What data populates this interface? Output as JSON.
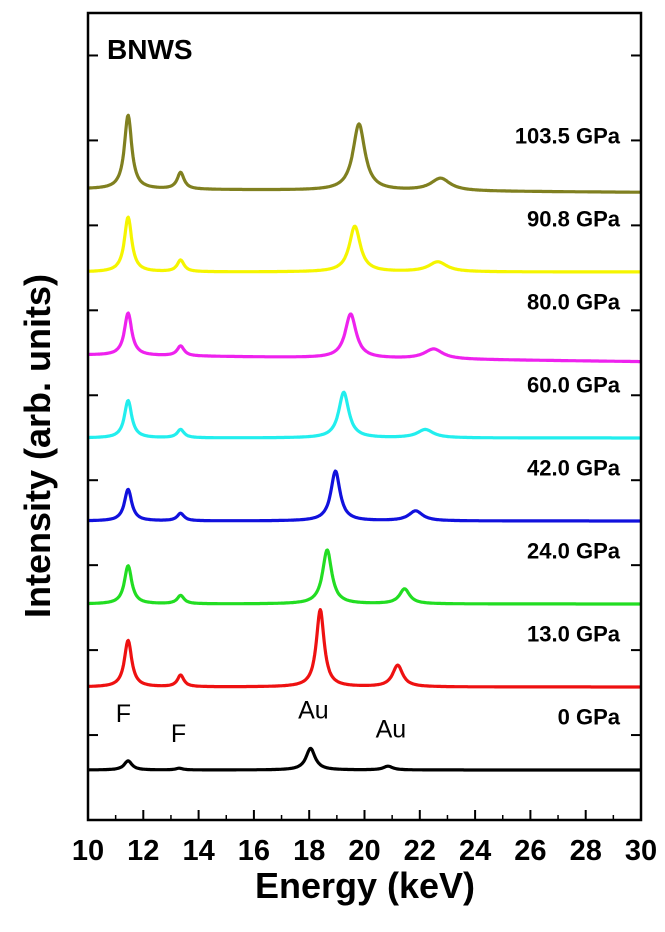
{
  "chart_data": {
    "type": "line",
    "title": "BNWS",
    "xlabel": "Energy (keV)",
    "ylabel": "Intensity (arb. units)",
    "xlim": [
      10,
      30
    ],
    "x_ticks": [
      "10",
      "12",
      "14",
      "16",
      "18",
      "20",
      "22",
      "24",
      "26",
      "28",
      "30"
    ],
    "y_tick_count": 9,
    "grid": false,
    "series": [
      {
        "name": "0 GPa",
        "color": "#000000",
        "baseline": 0.0,
        "bg_end": 0.0,
        "peaks": [
          [
            11.45,
            0.11,
            0.17
          ],
          [
            13.3,
            0.02,
            0.15
          ],
          [
            18.05,
            0.26,
            0.2
          ],
          [
            20.85,
            0.045,
            0.2
          ]
        ]
      },
      {
        "name": "13.0 GPa",
        "color": "#ee1111",
        "baseline": 1.0,
        "bg_end": 0.0,
        "peaks": [
          [
            11.45,
            0.56,
            0.16
          ],
          [
            13.35,
            0.14,
            0.14
          ],
          [
            18.4,
            0.93,
            0.17
          ],
          [
            21.2,
            0.26,
            0.22
          ]
        ]
      },
      {
        "name": "24.0 GPa",
        "color": "#22dd22",
        "baseline": 2.0,
        "bg_end": 0.0,
        "peaks": [
          [
            11.45,
            0.46,
            0.16
          ],
          [
            13.35,
            0.1,
            0.15
          ],
          [
            18.65,
            0.65,
            0.2
          ],
          [
            21.45,
            0.18,
            0.22
          ]
        ]
      },
      {
        "name": "42.0 GPa",
        "color": "#1111dd",
        "baseline": 3.0,
        "bg_end": 0.0,
        "peaks": [
          [
            11.45,
            0.38,
            0.16
          ],
          [
            13.35,
            0.09,
            0.15
          ],
          [
            18.95,
            0.6,
            0.2
          ],
          [
            21.85,
            0.12,
            0.3
          ]
        ]
      },
      {
        "name": "60.0 GPa",
        "color": "#22eeee",
        "baseline": 4.0,
        "bg_end": 0.0,
        "peaks": [
          [
            11.45,
            0.45,
            0.16
          ],
          [
            13.35,
            0.1,
            0.15
          ],
          [
            19.25,
            0.55,
            0.22
          ],
          [
            22.2,
            0.1,
            0.35
          ]
        ]
      },
      {
        "name": "80.0 GPa",
        "color": "#ee22ee",
        "baseline": 5.0,
        "bg_end": -0.08,
        "peaks": [
          [
            11.45,
            0.51,
            0.16
          ],
          [
            13.35,
            0.12,
            0.15
          ],
          [
            19.5,
            0.53,
            0.24
          ],
          [
            22.5,
            0.12,
            0.4
          ]
        ]
      },
      {
        "name": "90.8 GPa",
        "color": "#f5f500",
        "baseline": 6.0,
        "bg_end": 0.0,
        "peaks": [
          [
            11.45,
            0.66,
            0.16
          ],
          [
            13.35,
            0.14,
            0.15
          ],
          [
            19.65,
            0.55,
            0.24
          ],
          [
            22.65,
            0.12,
            0.4
          ]
        ]
      },
      {
        "name": "103.5 GPa",
        "color": "#808020",
        "baseline": 7.0,
        "bg_end": -0.04,
        "peaks": [
          [
            11.45,
            0.89,
            0.16
          ],
          [
            13.35,
            0.2,
            0.15
          ],
          [
            19.8,
            0.8,
            0.26
          ],
          [
            22.75,
            0.15,
            0.42
          ]
        ]
      }
    ],
    "annotations": [
      {
        "text": "F",
        "x": 11.0,
        "y": 0.58
      },
      {
        "text": "F",
        "x": 13.0,
        "y": 0.34
      },
      {
        "text": "Au",
        "x": 17.6,
        "y": 0.62
      },
      {
        "text": "Au",
        "x": 20.4,
        "y": 0.39
      }
    ]
  }
}
